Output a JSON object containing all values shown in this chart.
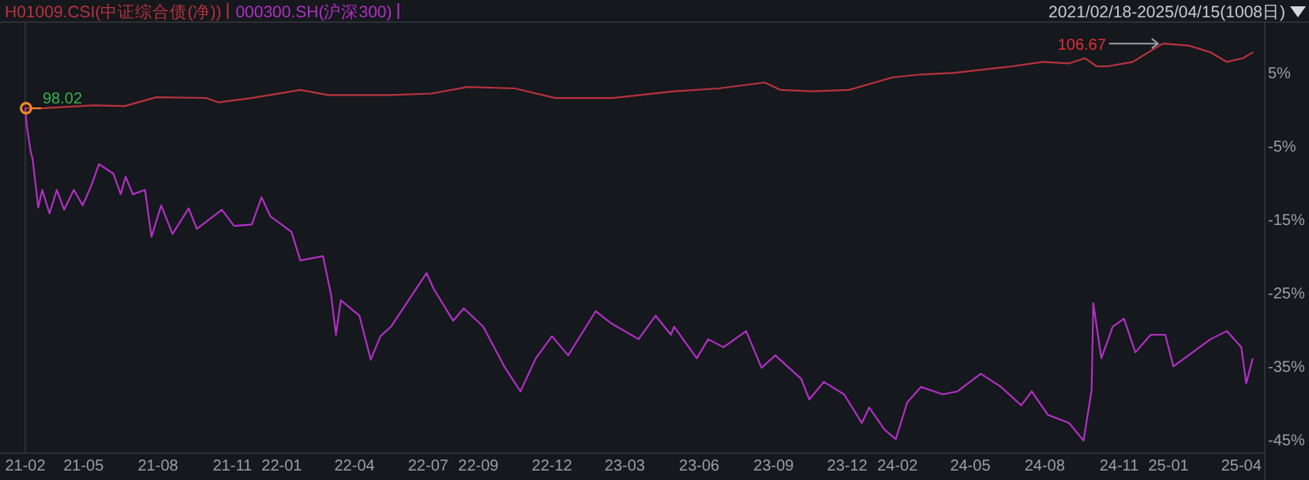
{
  "chart_data": {
    "type": "line",
    "series": [
      {
        "name": "H01009.CSI(中证综合债(净))",
        "color": "#b8323f",
        "x": [
          "2021-02-18",
          "2021-03-11",
          "2021-05-14",
          "2021-06-21",
          "2021-07-30",
          "2021-09-29",
          "2021-10-15",
          "2021-11-25",
          "2022-01-24",
          "2022-02-27",
          "2022-05-16",
          "2022-07-05",
          "2022-08-19",
          "2022-10-16",
          "2022-12-05",
          "2023-02-14",
          "2023-05-01",
          "2023-06-25",
          "2023-08-21",
          "2023-09-09",
          "2023-10-19",
          "2023-12-03",
          "2024-01-26",
          "2024-03-01",
          "2024-04-10",
          "2024-06-22",
          "2024-07-30",
          "2024-08-31",
          "2024-09-20",
          "2024-10-04",
          "2024-10-18",
          "2024-11-18",
          "2024-12-07",
          "2024-12-25",
          "2025-01-27",
          "2025-02-22",
          "2025-03-14",
          "2025-04-03",
          "2025-04-15"
        ],
        "values": [
          0,
          0,
          0.4,
          0.3,
          1.5,
          1.4,
          0.8,
          1.4,
          2.5,
          1.8,
          1.8,
          2.0,
          2.9,
          2.7,
          1.4,
          1.4,
          2.3,
          2.7,
          3.5,
          2.5,
          2.3,
          2.5,
          4.2,
          4.6,
          4.8,
          5.7,
          6.3,
          6.1,
          6.8,
          5.7,
          5.7,
          6.3,
          7.6,
          8.8,
          8.5,
          7.6,
          6.3,
          6.8,
          7.6
        ]
      },
      {
        "name": "000300.SH(沪深300)",
        "color": "#b12fc4",
        "x": [
          "2021-02-18",
          "2021-02-20",
          "2021-02-25",
          "2021-02-27",
          "2021-03-06",
          "2021-03-11",
          "2021-03-20",
          "2021-03-29",
          "2021-04-07",
          "2021-04-19",
          "2021-04-30",
          "2021-05-11",
          "2021-05-20",
          "2021-06-07",
          "2021-06-16",
          "2021-06-22",
          "2021-07-01",
          "2021-07-16",
          "2021-07-24",
          "2021-08-05",
          "2021-08-19",
          "2021-09-08",
          "2021-09-18",
          "2021-10-19",
          "2021-11-03",
          "2021-11-25",
          "2021-12-07",
          "2021-12-18",
          "2022-01-13",
          "2022-01-24",
          "2022-02-21",
          "2022-03-03",
          "2022-03-09",
          "2022-03-15",
          "2022-04-07",
          "2022-04-21",
          "2022-05-03",
          "2022-05-16",
          "2022-06-11",
          "2022-06-29",
          "2022-07-08",
          "2022-08-01",
          "2022-08-14",
          "2022-09-07",
          "2022-10-03",
          "2022-10-23",
          "2022-11-11",
          "2022-12-01",
          "2022-12-21",
          "2023-01-24",
          "2023-02-13",
          "2023-03-18",
          "2023-04-08",
          "2023-04-27",
          "2023-05-01",
          "2023-05-29",
          "2023-06-12",
          "2023-07-01",
          "2023-07-29",
          "2023-08-17",
          "2023-09-03",
          "2023-10-05",
          "2023-10-15",
          "2023-11-02",
          "2023-11-27",
          "2023-12-19",
          "2023-12-28",
          "2024-01-16",
          "2024-01-30",
          "2024-02-13",
          "2024-03-01",
          "2024-03-28",
          "2024-04-15",
          "2024-05-14",
          "2024-06-08",
          "2024-07-03",
          "2024-07-16",
          "2024-08-05",
          "2024-08-31",
          "2024-09-18",
          "2024-09-28",
          "2024-09-30",
          "2024-10-10",
          "2024-10-24",
          "2024-11-07",
          "2024-11-21",
          "2024-12-10",
          "2024-12-28",
          "2025-01-07",
          "2025-02-02",
          "2025-02-22",
          "2025-03-14",
          "2025-04-01",
          "2025-04-07",
          "2025-04-15"
        ],
        "values": [
          0,
          -2.5,
          -6.1,
          -6.8,
          -13.5,
          -11.1,
          -14.3,
          -11.1,
          -13.8,
          -11.1,
          -13.2,
          -10.4,
          -7.6,
          -8.9,
          -11.7,
          -9.3,
          -11.7,
          -11.1,
          -17.5,
          -13.2,
          -17.1,
          -13.6,
          -16.4,
          -13.8,
          -16.0,
          -15.8,
          -12.1,
          -14.7,
          -16.8,
          -20.7,
          -20.1,
          -25.4,
          -30.8,
          -26.1,
          -28.2,
          -34.2,
          -31.0,
          -29.7,
          -25.4,
          -22.4,
          -24.6,
          -28.9,
          -27.2,
          -29.7,
          -35.1,
          -38.5,
          -34.0,
          -31.0,
          -33.6,
          -27.6,
          -29.3,
          -31.4,
          -28.2,
          -30.8,
          -29.7,
          -34.0,
          -31.4,
          -32.5,
          -30.3,
          -35.3,
          -33.6,
          -36.8,
          -39.6,
          -37.2,
          -38.9,
          -42.8,
          -40.7,
          -43.7,
          -45.0,
          -40.0,
          -37.9,
          -38.9,
          -38.5,
          -36.1,
          -37.9,
          -40.4,
          -38.5,
          -41.7,
          -42.8,
          -45.2,
          -38.3,
          -26.5,
          -34.0,
          -29.7,
          -28.6,
          -33.2,
          -30.8,
          -30.8,
          -35.1,
          -33.0,
          -31.4,
          -30.3,
          -32.5,
          -37.4,
          -34.1
        ]
      }
    ],
    "xlim": [
      "2021-02-18",
      "2025-04-30"
    ],
    "xticks": [
      {
        "value": "2021-02-18",
        "label": "21-02"
      },
      {
        "value": "2021-05",
        "label": "21-05"
      },
      {
        "value": "2021-08",
        "label": "21-08"
      },
      {
        "value": "2021-11",
        "label": "21-11"
      },
      {
        "value": "2022-01",
        "label": "22-01"
      },
      {
        "value": "2022-04",
        "label": "22-04"
      },
      {
        "value": "2022-07",
        "label": "22-07"
      },
      {
        "value": "2022-09",
        "label": "22-09"
      },
      {
        "value": "2022-12",
        "label": "22-12"
      },
      {
        "value": "2023-03",
        "label": "23-03"
      },
      {
        "value": "2023-06",
        "label": "23-06"
      },
      {
        "value": "2023-09",
        "label": "23-09"
      },
      {
        "value": "2023-12",
        "label": "23-12"
      },
      {
        "value": "2024-02",
        "label": "24-02"
      },
      {
        "value": "2024-05",
        "label": "24-05"
      },
      {
        "value": "2024-08",
        "label": "24-08"
      },
      {
        "value": "2024-11",
        "label": "24-11"
      },
      {
        "value": "2025-01",
        "label": "25-01"
      },
      {
        "value": "2025-04",
        "label": "25-04"
      }
    ],
    "ylim": [
      -46.9,
      11.5
    ],
    "yticks": [
      {
        "value": 5,
        "label": "5%"
      },
      {
        "value": -5,
        "label": "-5%"
      },
      {
        "value": -15,
        "label": "-15%"
      },
      {
        "value": -25,
        "label": "-25%"
      },
      {
        "value": -35,
        "label": "-35%"
      },
      {
        "value": -45,
        "label": "-45%"
      }
    ],
    "legend": "top left",
    "annotations": [
      {
        "text": "98.02",
        "x": "2021-02-18",
        "y": 0
      },
      {
        "text": "106.67",
        "x": "2024-12-25",
        "y": 8.8
      },
      "2021/02/18-2025/04/15(1008日)"
    ]
  }
}
